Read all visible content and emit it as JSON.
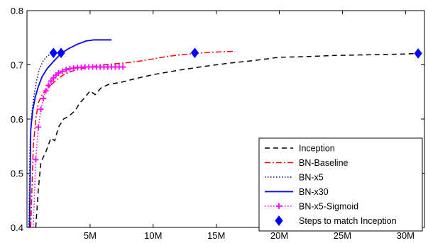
{
  "chart_data": {
    "type": "line",
    "title": "",
    "xlabel": "",
    "ylabel": "",
    "xlim": [
      0,
      31500000
    ],
    "ylim": [
      0.4,
      0.8
    ],
    "x_ticks": [
      {
        "value": 5000000,
        "label": "5M"
      },
      {
        "value": 10000000,
        "label": "10M"
      },
      {
        "value": 15000000,
        "label": "15M"
      },
      {
        "value": 20000000,
        "label": "20M"
      },
      {
        "value": 25000000,
        "label": "25M"
      },
      {
        "value": 30000000,
        "label": "30M"
      }
    ],
    "y_ticks": [
      {
        "value": 0.4,
        "label": "0.4"
      },
      {
        "value": 0.5,
        "label": "0.5"
      },
      {
        "value": 0.6,
        "label": "0.6"
      },
      {
        "value": 0.7,
        "label": "0.7"
      },
      {
        "value": 0.8,
        "label": "0.8"
      }
    ],
    "grid": false,
    "legend_position": "bottom-right",
    "series": [
      {
        "name": "Inception",
        "style": "dashed",
        "color": "#000000",
        "marker": "none",
        "x": [
          700000,
          900000,
          1100000,
          1500000,
          1900000,
          2200000,
          2500000,
          2900000,
          3300000,
          3800000,
          4200000,
          4600000,
          5000000,
          5400000,
          5900000,
          6500000,
          7500000,
          8500000,
          10000000,
          12000000,
          14000000,
          16000000,
          18000000,
          20000000,
          22000000,
          24000000,
          26000000,
          28000000,
          30000000,
          31000000
        ],
        "y": [
          0.4,
          0.47,
          0.52,
          0.54,
          0.565,
          0.56,
          0.585,
          0.6,
          0.605,
          0.615,
          0.63,
          0.64,
          0.652,
          0.645,
          0.658,
          0.664,
          0.668,
          0.674,
          0.682,
          0.69,
          0.697,
          0.703,
          0.708,
          0.714,
          0.715,
          0.717,
          0.718,
          0.719,
          0.72,
          0.721
        ]
      },
      {
        "name": "BN-Baseline",
        "style": "dashdot",
        "color": "#ff0000",
        "marker": "none",
        "x": [
          300000,
          500000,
          700000,
          900000,
          1200000,
          1600000,
          2000000,
          2500000,
          3000000,
          4000000,
          5000000,
          6000000,
          7000000,
          8000000,
          9000000,
          10000000,
          11000000,
          12000000,
          13300000,
          14500000,
          15500000,
          16500000
        ],
        "y": [
          0.4,
          0.55,
          0.6,
          0.63,
          0.645,
          0.655,
          0.665,
          0.675,
          0.683,
          0.692,
          0.696,
          0.7,
          0.702,
          0.704,
          0.707,
          0.711,
          0.715,
          0.718,
          0.721,
          0.723,
          0.724,
          0.725
        ]
      },
      {
        "name": "BN-x5",
        "style": "dotted",
        "color": "#000080",
        "marker": "none",
        "x": [
          150000,
          250000,
          400000,
          600000,
          800000,
          1000000,
          1300000,
          1600000,
          2000000
        ],
        "y": [
          0.4,
          0.56,
          0.615,
          0.65,
          0.675,
          0.693,
          0.708,
          0.716,
          0.722
        ]
      },
      {
        "name": "BN-x30",
        "style": "solid",
        "color": "#0000ff",
        "marker": "none",
        "x": [
          200000,
          300000,
          450000,
          650000,
          900000,
          1200000,
          1600000,
          2100000,
          2700000,
          3300000,
          4000000,
          4700000,
          5300000,
          6000000,
          6700000
        ],
        "y": [
          0.4,
          0.58,
          0.615,
          0.64,
          0.66,
          0.678,
          0.693,
          0.706,
          0.721,
          0.73,
          0.738,
          0.744,
          0.746,
          0.746,
          0.746
        ]
      },
      {
        "name": "BN-x5-Sigmoid",
        "style": "dotted",
        "color": "#ff00ff",
        "marker": "plus",
        "x": [
          500000,
          700000,
          900000,
          1100000,
          1300000,
          1500000,
          1700000,
          1900000,
          2100000,
          2300000,
          2500000,
          2800000,
          3100000,
          3400000,
          3700000,
          4000000,
          4300000,
          4600000,
          4900000,
          5200000,
          5500000,
          5800000,
          6100000,
          6400000,
          6700000,
          7000000,
          7300000,
          7600000
        ],
        "y": [
          0.4,
          0.525,
          0.585,
          0.618,
          0.638,
          0.652,
          0.662,
          0.67,
          0.676,
          0.681,
          0.685,
          0.688,
          0.691,
          0.693,
          0.694,
          0.695,
          0.695,
          0.696,
          0.696,
          0.696,
          0.696,
          0.696,
          0.696,
          0.696,
          0.696,
          0.696,
          0.696,
          0.696
        ]
      },
      {
        "name": "Steps to match Inception",
        "style": "none",
        "color": "#0000ff",
        "marker": "diamond",
        "x": [
          2100000,
          2700000,
          13300000,
          31000000
        ],
        "y": [
          0.722,
          0.722,
          0.722,
          0.721
        ]
      }
    ]
  }
}
